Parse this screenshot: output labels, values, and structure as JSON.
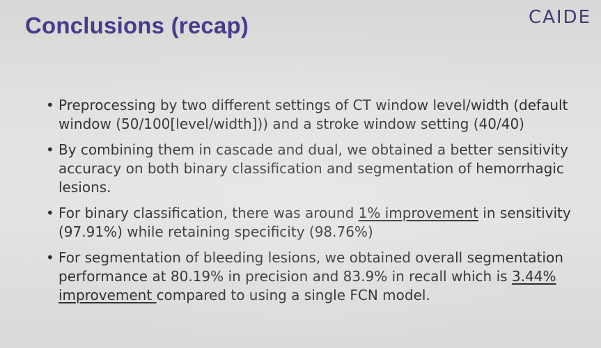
{
  "slide": {
    "title": "Conclusions (recap)",
    "logo": "CAIDE",
    "bullets": [
      {
        "text": "Preprocessing by two different settings of CT window level/width (default window (50/100[level/width])) and a stroke window setting (40/40)"
      },
      {
        "text": "By combining them in cascade and dual, we obtained a better sensitivity accuracy on both binary classification and segmentation of hemorrhagic lesions."
      },
      {
        "before": "For binary classification, there was around ",
        "highlight": "1% improvement",
        "after": " in sensitivity (97.91%) while retaining specificity (98.76%)"
      },
      {
        "before": "For segmentation of bleeding lesions, we obtained overall segmentation performance at 80.19% in precision and 83.9% in recall which is ",
        "highlight": "3.44% improvement ",
        "after": "compared to using a single FCN model."
      }
    ]
  }
}
